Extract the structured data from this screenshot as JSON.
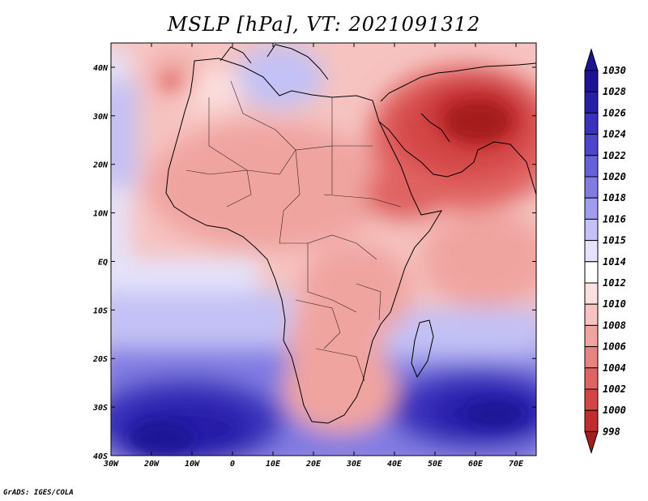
{
  "title": "MSLP [hPa], VT: 2021091312",
  "credit": "GrADS: IGES/COLA",
  "map": {
    "lon_ticks": [
      "30W",
      "20W",
      "10W",
      "0",
      "10E",
      "20E",
      "30E",
      "40E",
      "50E",
      "60E",
      "70E"
    ],
    "lat_ticks": [
      "40N",
      "30N",
      "20N",
      "10N",
      "EQ",
      "10S",
      "20S",
      "30S",
      "40S"
    ],
    "extent": {
      "lon_min": -30,
      "lon_max": 75,
      "lat_min": -40,
      "lat_max": 45
    }
  },
  "colorbar": {
    "levels": [
      "1030",
      "1028",
      "1026",
      "1024",
      "1022",
      "1020",
      "1018",
      "1016",
      "1015",
      "1014",
      "1012",
      "1010",
      "1008",
      "1006",
      "1004",
      "1002",
      "1000",
      "998"
    ],
    "colors": [
      "#1c1496",
      "#271fa8",
      "#3a32bc",
      "#4d46cc",
      "#6661d8",
      "#807ce2",
      "#a09ded",
      "#c3c1f5",
      "#e4e3fb",
      "#ffffff",
      "#fbe0df",
      "#f6c3c0",
      "#f0a4a0",
      "#e88480",
      "#e06462",
      "#d44646",
      "#c12c2e",
      "#a61b1d"
    ]
  }
}
